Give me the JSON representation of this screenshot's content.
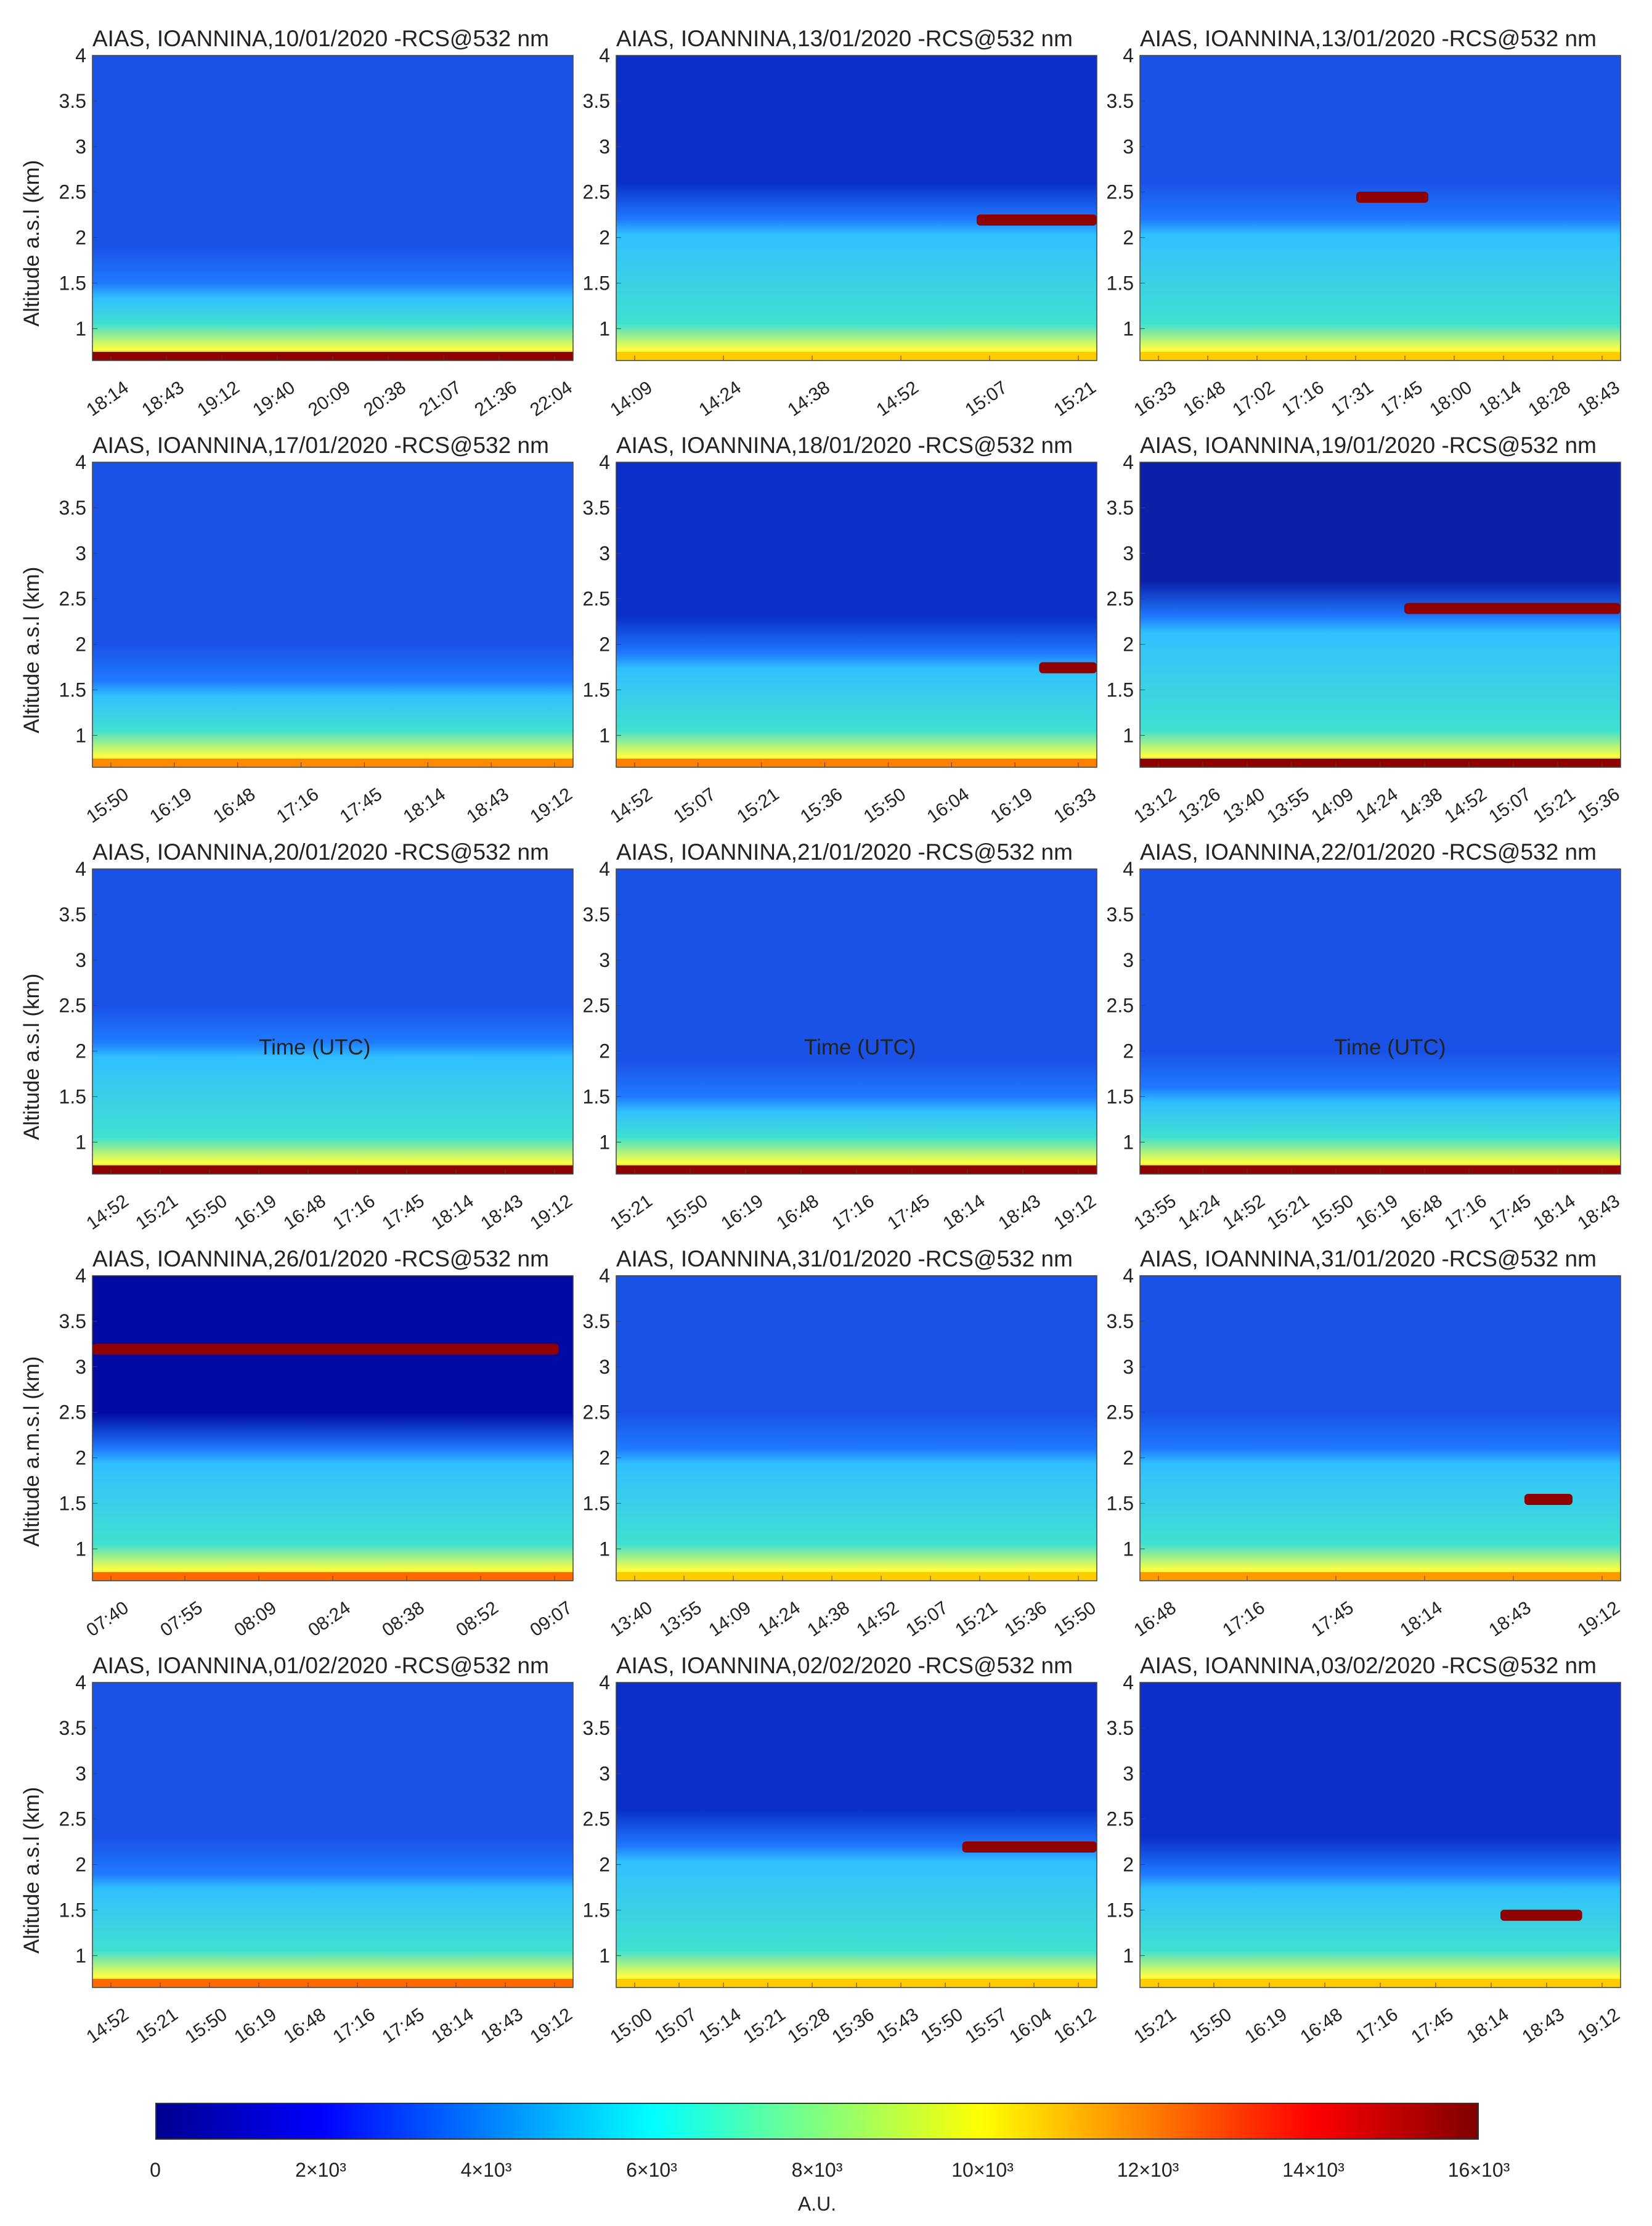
{
  "colorbar": {
    "ticks": [
      "0",
      "2×10³",
      "4×10³",
      "6×10³",
      "8×10³",
      "10×10³",
      "12×10³",
      "14×10³",
      "16×10³"
    ],
    "values": [
      0,
      2000,
      4000,
      6000,
      8000,
      10000,
      12000,
      14000,
      16000
    ],
    "unit": "A.U.",
    "colors": [
      "#00008f",
      "#0000ff",
      "#0080ff",
      "#00ffff",
      "#80ff80",
      "#ffff00",
      "#ff8000",
      "#ff0000",
      "#800000"
    ]
  },
  "x_axis_label": "Time (UTC)",
  "chart_data": [
    {
      "type": "heatmap",
      "title": "AIAS, IOANNINA,10/01/2020 -RCS@532 nm",
      "ylabel": "Altitude a.s.l (km)",
      "ylim": [
        0.65,
        4
      ],
      "yticks": [
        "1",
        "1.5",
        "2",
        "2.5",
        "3",
        "3.5",
        "4"
      ],
      "xticks": [
        "18:14",
        "18:43",
        "19:12",
        "19:40",
        "20:09",
        "20:38",
        "21:07",
        "21:36",
        "22:04"
      ]
    },
    {
      "type": "heatmap",
      "title": "AIAS, IOANNINA,13/01/2020 -RCS@532 nm",
      "ylabel": "",
      "ylim": [
        0.65,
        4
      ],
      "yticks": [
        "1",
        "1.5",
        "2",
        "2.5",
        "3",
        "3.5",
        "4"
      ],
      "xticks": [
        "14:09",
        "14:24",
        "14:38",
        "14:52",
        "15:07",
        "15:21"
      ]
    },
    {
      "type": "heatmap",
      "title": "AIAS, IOANNINA,13/01/2020 -RCS@532 nm",
      "ylabel": "",
      "ylim": [
        0.65,
        4
      ],
      "yticks": [
        "1",
        "1.5",
        "2",
        "2.5",
        "3",
        "3.5",
        "4"
      ],
      "xticks": [
        "16:33",
        "16:48",
        "17:02",
        "17:16",
        "17:31",
        "17:45",
        "18:00",
        "18:14",
        "18:28",
        "18:43"
      ]
    },
    {
      "type": "heatmap",
      "title": "AIAS, IOANNINA,17/01/2020 -RCS@532 nm",
      "ylabel": "Altitude a.s.l (km)",
      "ylim": [
        0.65,
        4
      ],
      "yticks": [
        "1",
        "1.5",
        "2",
        "2.5",
        "3",
        "3.5",
        "4"
      ],
      "xticks": [
        "15:50",
        "16:19",
        "16:48",
        "17:16",
        "17:45",
        "18:14",
        "18:43",
        "19:12"
      ]
    },
    {
      "type": "heatmap",
      "title": "AIAS, IOANNINA,18/01/2020 -RCS@532 nm",
      "ylabel": "",
      "ylim": [
        0.65,
        4
      ],
      "yticks": [
        "1",
        "1.5",
        "2",
        "2.5",
        "3",
        "3.5",
        "4"
      ],
      "xticks": [
        "14:52",
        "15:07",
        "15:21",
        "15:36",
        "15:50",
        "16:04",
        "16:19",
        "16:33"
      ]
    },
    {
      "type": "heatmap",
      "title": "AIAS, IOANNINA,19/01/2020 -RCS@532 nm",
      "ylabel": "",
      "ylim": [
        0.65,
        4
      ],
      "yticks": [
        "1",
        "1.5",
        "2",
        "2.5",
        "3",
        "3.5",
        "4"
      ],
      "xticks": [
        "13:12",
        "13:26",
        "13:40",
        "13:55",
        "14:09",
        "14:24",
        "14:38",
        "14:52",
        "15:07",
        "15:21",
        "15:36"
      ]
    },
    {
      "type": "heatmap",
      "title": "AIAS, IOANNINA,20/01/2020 -RCS@532 nm",
      "ylabel": "Altitude a.s.l (km)",
      "ylim": [
        0.65,
        4
      ],
      "yticks": [
        "1",
        "1.5",
        "2",
        "2.5",
        "3",
        "3.5",
        "4"
      ],
      "xticks": [
        "14:52",
        "15:21",
        "15:50",
        "16:19",
        "16:48",
        "17:16",
        "17:45",
        "18:14",
        "18:43",
        "19:12"
      ]
    },
    {
      "type": "heatmap",
      "title": "AIAS, IOANNINA,21/01/2020 -RCS@532 nm",
      "ylabel": "",
      "ylim": [
        0.65,
        4
      ],
      "yticks": [
        "1",
        "1.5",
        "2",
        "2.5",
        "3",
        "3.5",
        "4"
      ],
      "xticks": [
        "15:21",
        "15:50",
        "16:19",
        "16:48",
        "17:16",
        "17:45",
        "18:14",
        "18:43",
        "19:12"
      ]
    },
    {
      "type": "heatmap",
      "title": "AIAS, IOANNINA,22/01/2020 -RCS@532 nm",
      "ylabel": "",
      "ylim": [
        0.65,
        4
      ],
      "yticks": [
        "1",
        "1.5",
        "2",
        "2.5",
        "3",
        "3.5",
        "4"
      ],
      "xticks": [
        "13:55",
        "14:24",
        "14:52",
        "15:21",
        "15:50",
        "16:19",
        "16:48",
        "17:16",
        "17:45",
        "18:14",
        "18:43"
      ]
    },
    {
      "type": "heatmap",
      "title": "AIAS, IOANNINA,26/01/2020 -RCS@532 nm",
      "ylabel": "Altitude a.m.s.l (km)",
      "ylim": [
        0.65,
        4
      ],
      "yticks": [
        "1",
        "1.5",
        "2",
        "2.5",
        "3",
        "3.5",
        "4"
      ],
      "xticks": [
        "07:40",
        "07:55",
        "08:09",
        "08:24",
        "08:38",
        "08:52",
        "09:07"
      ]
    },
    {
      "type": "heatmap",
      "title": "AIAS, IOANNINA,31/01/2020 -RCS@532 nm",
      "ylabel": "",
      "ylim": [
        0.65,
        4
      ],
      "yticks": [
        "1",
        "1.5",
        "2",
        "2.5",
        "3",
        "3.5",
        "4"
      ],
      "xticks": [
        "13:40",
        "13:55",
        "14:09",
        "14:24",
        "14:38",
        "14:52",
        "15:07",
        "15:21",
        "15:36",
        "15:50"
      ]
    },
    {
      "type": "heatmap",
      "title": "AIAS, IOANNINA,31/01/2020 -RCS@532 nm",
      "ylabel": "",
      "ylim": [
        0.65,
        4
      ],
      "yticks": [
        "1",
        "1.5",
        "2",
        "2.5",
        "3",
        "3.5",
        "4"
      ],
      "xticks": [
        "16:48",
        "17:16",
        "17:45",
        "18:14",
        "18:43",
        "19:12"
      ]
    },
    {
      "type": "heatmap",
      "title": "AIAS, IOANNINA,01/02/2020 -RCS@532 nm",
      "ylabel": "Altitude a.s.l (km)",
      "ylim": [
        0.65,
        4
      ],
      "yticks": [
        "1",
        "1.5",
        "2",
        "2.5",
        "3",
        "3.5",
        "4"
      ],
      "xticks": [
        "14:52",
        "15:21",
        "15:50",
        "16:19",
        "16:48",
        "17:16",
        "17:45",
        "18:14",
        "18:43",
        "19:12"
      ]
    },
    {
      "type": "heatmap",
      "title": "AIAS, IOANNINA,02/02/2020 -RCS@532 nm",
      "ylabel": "",
      "ylim": [
        0.65,
        4
      ],
      "yticks": [
        "1",
        "1.5",
        "2",
        "2.5",
        "3",
        "3.5",
        "4"
      ],
      "xticks": [
        "15:00",
        "15:07",
        "15:14",
        "15:21",
        "15:28",
        "15:36",
        "15:43",
        "15:50",
        "15:57",
        "16:04",
        "16:12"
      ]
    },
    {
      "type": "heatmap",
      "title": "AIAS, IOANNINA,03/02/2020 -RCS@532 nm",
      "ylabel": "",
      "ylim": [
        0.65,
        4
      ],
      "yticks": [
        "1",
        "1.5",
        "2",
        "2.5",
        "3",
        "3.5",
        "4"
      ],
      "xticks": [
        "15:21",
        "15:50",
        "16:19",
        "16:48",
        "17:16",
        "17:45",
        "18:14",
        "18:43",
        "19:12"
      ]
    }
  ]
}
